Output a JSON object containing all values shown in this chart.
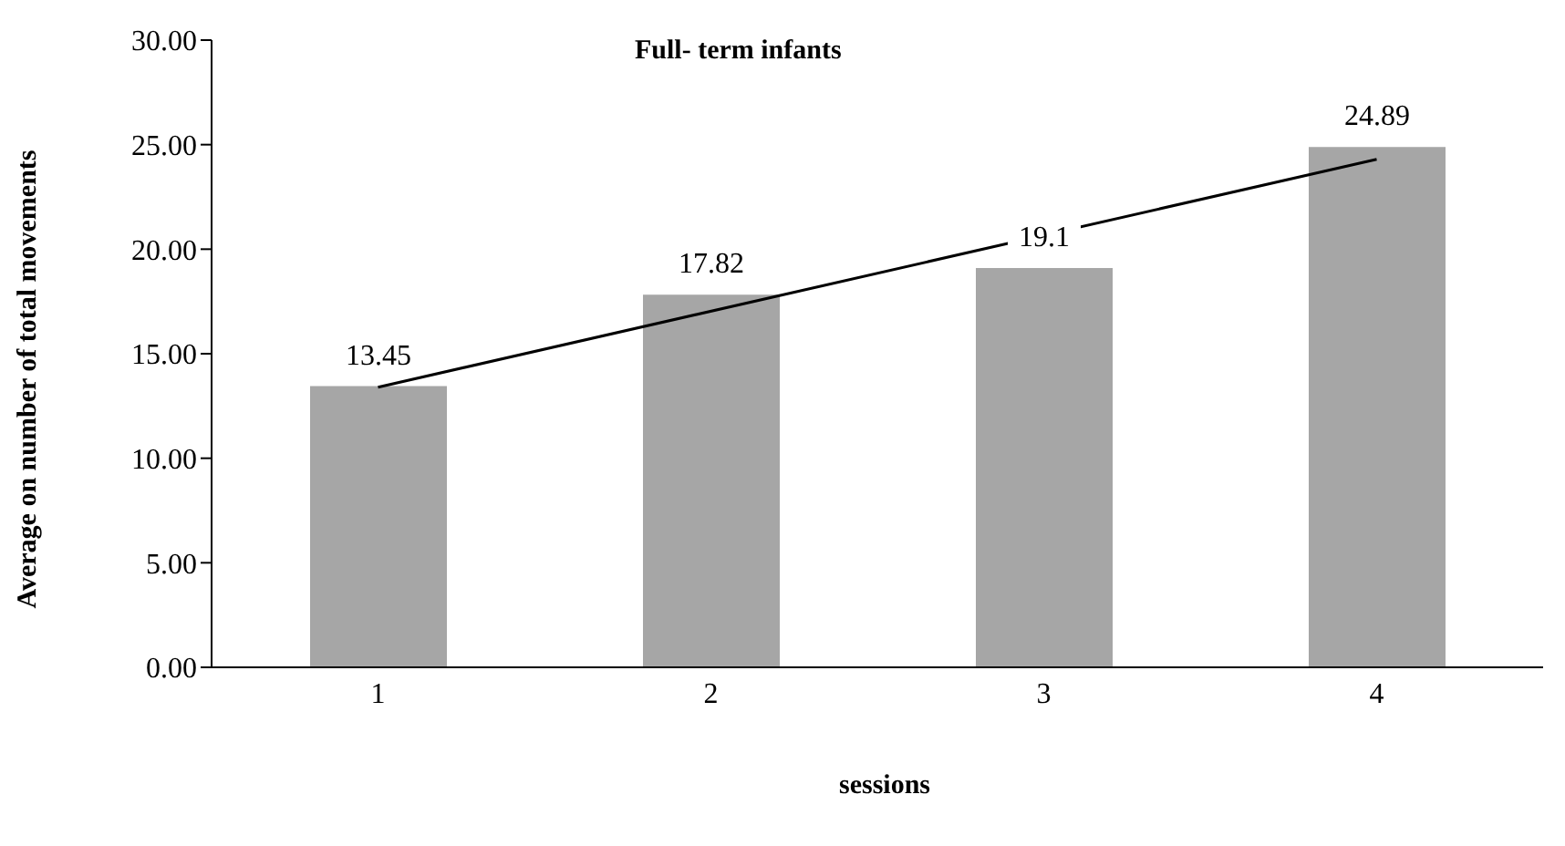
{
  "chart_data": {
    "type": "bar",
    "title": "Full- term infants",
    "xlabel": "sessions",
    "ylabel": "Average on number of total movements",
    "categories": [
      "1",
      "2",
      "3",
      "4"
    ],
    "series": [
      {
        "color": "#a6a6a6",
        "values": [
          13.45,
          17.82,
          19.1,
          24.89
        ],
        "value_labels": [
          "13.45",
          "17.82",
          "19.1",
          "24.89"
        ]
      },
      {
        "type": "line",
        "color": "#000000",
        "values": [
          13.4,
          null,
          null,
          24.3
        ]
      }
    ],
    "ylim": [
      0,
      30
    ],
    "yticks": [
      {
        "value": 0,
        "label": "0.00"
      },
      {
        "value": 5,
        "label": "5.00"
      },
      {
        "value": 10,
        "label": "10.00"
      },
      {
        "value": 15,
        "label": "15.00"
      },
      {
        "value": 20,
        "label": "20.00"
      },
      {
        "value": 25,
        "label": "25.00"
      },
      {
        "value": 30,
        "label": "30.00"
      }
    ],
    "grid": false,
    "legend": false,
    "marker": "none"
  }
}
